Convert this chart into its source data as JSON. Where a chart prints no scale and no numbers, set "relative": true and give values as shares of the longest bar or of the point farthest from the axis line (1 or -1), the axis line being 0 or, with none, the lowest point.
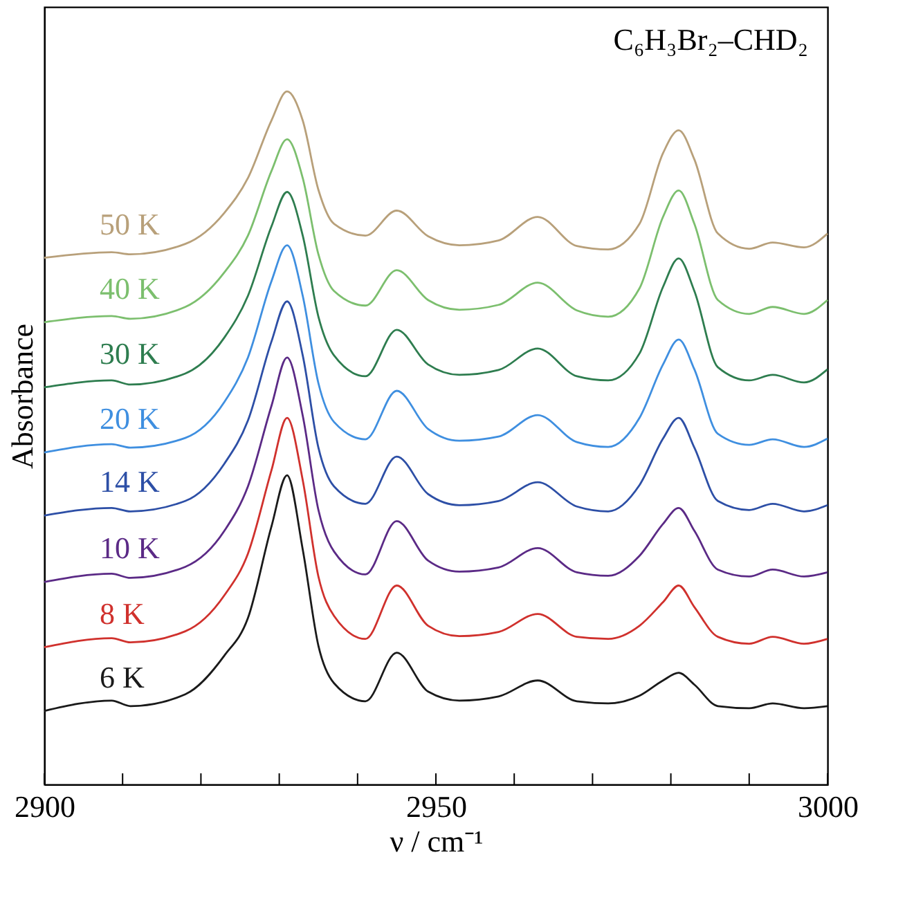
{
  "chart_data": {
    "type": "line",
    "relative": true,
    "xlabel": "ν / cm⁻¹",
    "ylabel": "Absorbance",
    "annotations": [
      "C₆H₃Br₂–CHD₂"
    ],
    "x": [
      2900,
      2908.6,
      2911,
      2918,
      2923,
      2926,
      2929,
      2931,
      2933,
      2935,
      2937,
      2941,
      2945,
      2949,
      2953,
      2958,
      2963,
      2968,
      2972,
      2976,
      2979,
      2981,
      2983,
      2986,
      2990,
      2993,
      2997,
      3000
    ],
    "xlim": [
      2900,
      3000
    ],
    "xticks": [
      2900,
      {
        "value": 2910,
        "label": null
      },
      {
        "value": 2920,
        "label": null
      },
      {
        "value": 2930,
        "label": null
      },
      {
        "value": 2940,
        "label": null
      },
      2950,
      {
        "value": 2960,
        "label": null
      },
      {
        "value": 2970,
        "label": null
      },
      {
        "value": 2980,
        "label": null
      },
      {
        "value": 2990,
        "label": null
      },
      3000
    ],
    "legend": false,
    "grid": false,
    "series": [
      {
        "name": "6 K",
        "color": "#1a1a1a",
        "values": [
          0.106,
          0.121,
          0.113,
          0.13,
          0.186,
          0.24,
          0.372,
          0.446,
          0.339,
          0.2,
          0.146,
          0.12,
          0.19,
          0.134,
          0.121,
          0.127,
          0.15,
          0.12,
          0.117,
          0.128,
          0.15,
          0.161,
          0.144,
          0.113,
          0.11,
          0.117,
          0.11,
          0.113
        ]
      },
      {
        "name": "8 K",
        "color": "#d0312d",
        "values": [
          0.198,
          0.211,
          0.205,
          0.221,
          0.273,
          0.333,
          0.453,
          0.529,
          0.439,
          0.3,
          0.243,
          0.21,
          0.287,
          0.229,
          0.214,
          0.22,
          0.246,
          0.213,
          0.21,
          0.229,
          0.263,
          0.287,
          0.256,
          0.213,
          0.203,
          0.213,
          0.203,
          0.21
        ]
      },
      {
        "name": "10 K",
        "color": "#5b2a86",
        "values": [
          0.292,
          0.304,
          0.298,
          0.314,
          0.366,
          0.43,
          0.546,
          0.616,
          0.532,
          0.396,
          0.336,
          0.303,
          0.38,
          0.323,
          0.307,
          0.313,
          0.341,
          0.306,
          0.301,
          0.33,
          0.376,
          0.399,
          0.366,
          0.31,
          0.3,
          0.31,
          0.3,
          0.306
        ]
      },
      {
        "name": "14 K",
        "color": "#2d4fa6",
        "values": [
          0.388,
          0.399,
          0.394,
          0.409,
          0.463,
          0.525,
          0.639,
          0.697,
          0.619,
          0.486,
          0.43,
          0.405,
          0.473,
          0.419,
          0.403,
          0.409,
          0.436,
          0.401,
          0.394,
          0.432,
          0.499,
          0.529,
          0.486,
          0.409,
          0.396,
          0.405,
          0.394,
          0.403
        ]
      },
      {
        "name": "20 K",
        "color": "#3f8fe0",
        "values": [
          0.479,
          0.491,
          0.486,
          0.5,
          0.552,
          0.616,
          0.726,
          0.778,
          0.705,
          0.579,
          0.523,
          0.498,
          0.568,
          0.513,
          0.496,
          0.502,
          0.533,
          0.494,
          0.487,
          0.529,
          0.606,
          0.642,
          0.599,
          0.506,
          0.49,
          0.498,
          0.487,
          0.499
        ]
      },
      {
        "name": "30 K",
        "color": "#2e7d4f",
        "values": [
          0.573,
          0.583,
          0.577,
          0.593,
          0.645,
          0.705,
          0.805,
          0.855,
          0.792,
          0.675,
          0.619,
          0.589,
          0.656,
          0.606,
          0.591,
          0.598,
          0.629,
          0.589,
          0.583,
          0.622,
          0.718,
          0.759,
          0.712,
          0.602,
          0.583,
          0.591,
          0.58,
          0.599
        ]
      },
      {
        "name": "40 K",
        "color": "#7cbf6e",
        "values": [
          0.667,
          0.676,
          0.672,
          0.689,
          0.739,
          0.792,
          0.885,
          0.931,
          0.875,
          0.765,
          0.712,
          0.691,
          0.742,
          0.699,
          0.685,
          0.692,
          0.724,
          0.684,
          0.675,
          0.716,
          0.819,
          0.857,
          0.809,
          0.699,
          0.679,
          0.689,
          0.679,
          0.699
        ]
      },
      {
        "name": "50 K",
        "color": "#b8a07a",
        "values": [
          0.76,
          0.768,
          0.765,
          0.78,
          0.825,
          0.875,
          0.958,
          1.0,
          0.958,
          0.858,
          0.809,
          0.792,
          0.828,
          0.791,
          0.778,
          0.785,
          0.819,
          0.777,
          0.772,
          0.809,
          0.911,
          0.944,
          0.902,
          0.795,
          0.773,
          0.782,
          0.775,
          0.795
        ]
      }
    ]
  }
}
